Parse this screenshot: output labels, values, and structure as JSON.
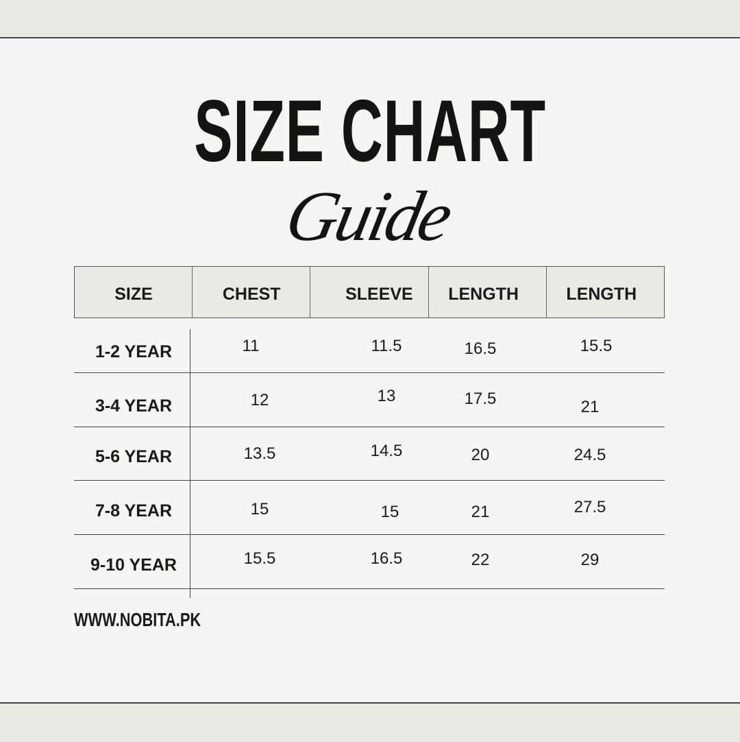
{
  "title": "SIZE CHART",
  "subtitle": "Guide",
  "table": {
    "headers": [
      "SIZE",
      "CHEST",
      "SLEEVE",
      "LENGTH",
      "LENGTH"
    ],
    "rows": [
      {
        "size": "1-2 YEAR",
        "values": [
          "11",
          "11.5",
          "16.5",
          "15.5"
        ]
      },
      {
        "size": "3-4 YEAR",
        "values": [
          "12",
          "13",
          "17.5",
          "21"
        ]
      },
      {
        "size": "5-6 YEAR",
        "values": [
          "13.5",
          "14.5",
          "20",
          "24.5"
        ]
      },
      {
        "size": "7-8 YEAR",
        "values": [
          "15",
          "15",
          "21",
          "27.5"
        ]
      },
      {
        "size": "9-10 YEAR",
        "values": [
          "15.5",
          "16.5",
          "22",
          "29"
        ]
      }
    ]
  },
  "footer": "WWW.NOBITA.PK",
  "colors": {
    "background": "#f5f5f3",
    "band": "#eaeae5",
    "text": "#1a1a1a"
  }
}
